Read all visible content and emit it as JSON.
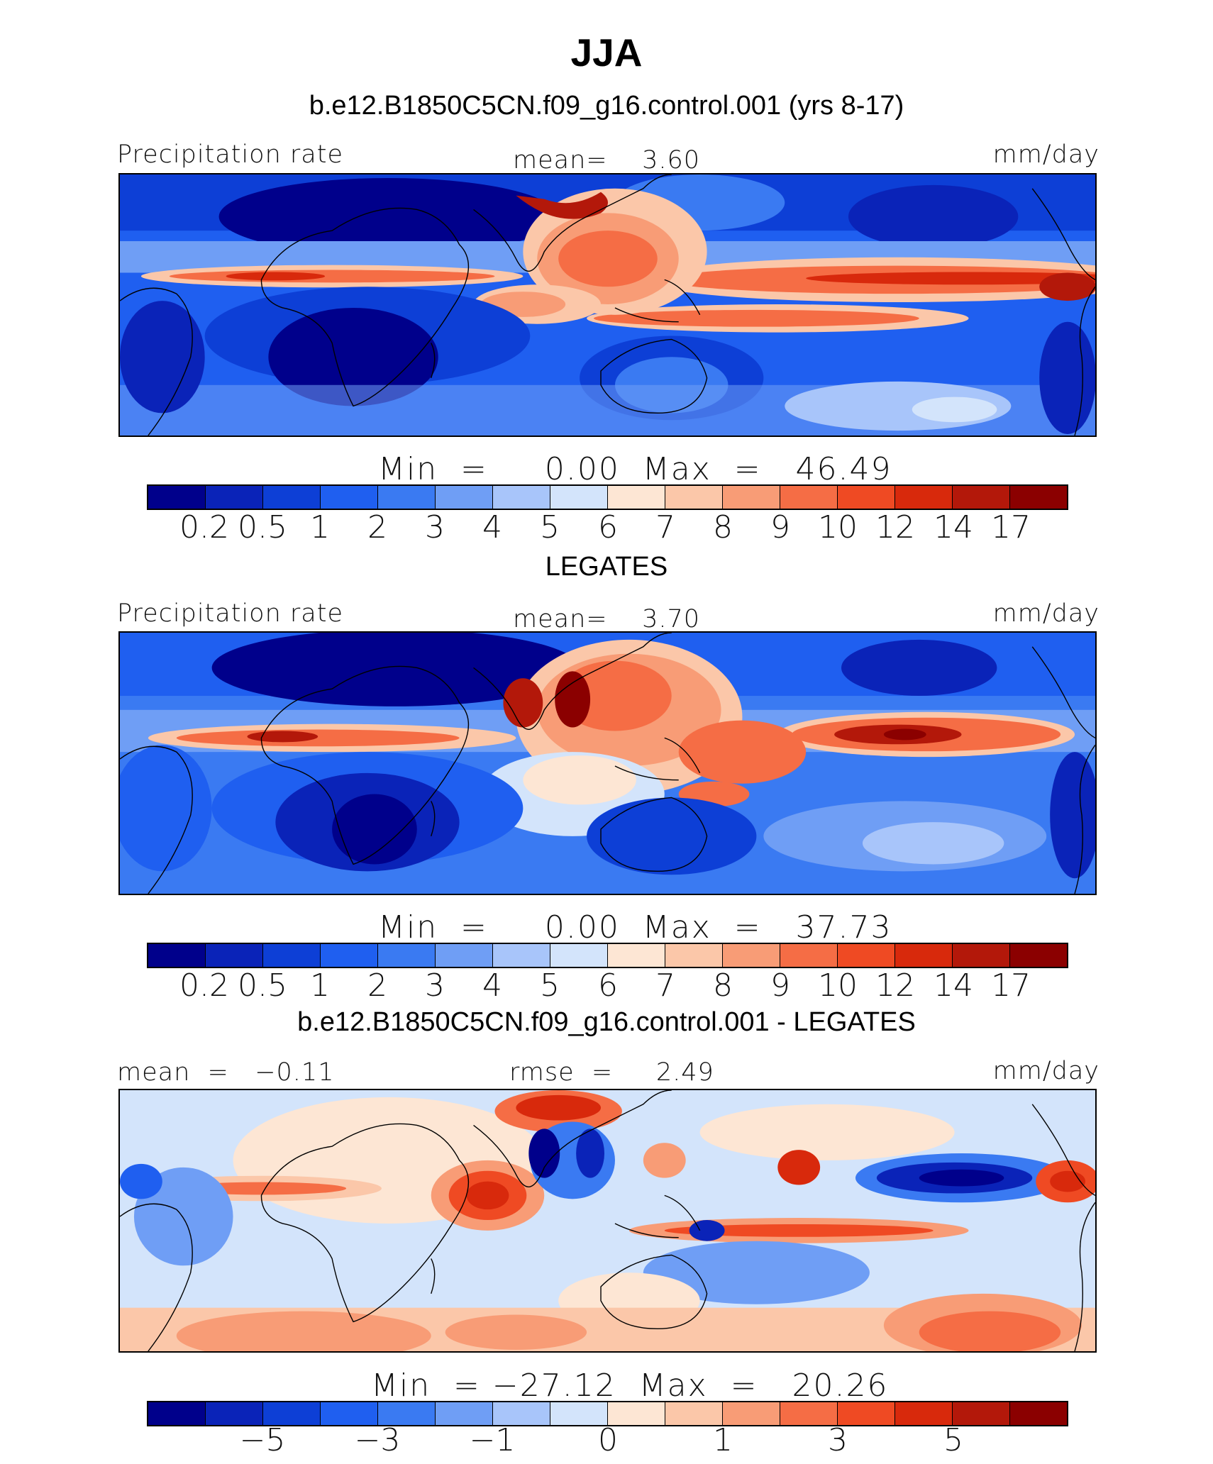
{
  "title": "JJA",
  "panels": [
    {
      "heading": "b.e12.B1850C5CN.f09_g16.control.001 (yrs 8-17)",
      "left_label": "Precipitation rate",
      "center_label": "mean=    3.60",
      "right_label": "mm/day",
      "minmax": "Min  =     0.00  Max  =   46.49",
      "ticks": [
        "0.2",
        "0.5",
        "1",
        "2",
        "3",
        "4",
        "5",
        "6",
        "7",
        "8",
        "9",
        "10",
        "12",
        "14",
        "17"
      ]
    },
    {
      "heading": "LEGATES",
      "left_label": "Precipitation rate",
      "center_label": "mean=    3.70",
      "right_label": "mm/day",
      "minmax": "Min  =     0.00  Max  =   37.73",
      "ticks": [
        "0.2",
        "0.5",
        "1",
        "2",
        "3",
        "4",
        "5",
        "6",
        "7",
        "8",
        "9",
        "10",
        "12",
        "14",
        "17"
      ]
    },
    {
      "heading": "b.e12.B1850C5CN.f09_g16.control.001 - LEGATES",
      "left_label": "mean  =   −0.11",
      "center_label": "rmse  =     2.49",
      "right_label": "mm/day",
      "minmax": "Min  = −27.12  Max  =   20.26",
      "ticks": [
        "−5",
        "−3",
        "−1",
        "0",
        "1",
        "3",
        "5"
      ]
    }
  ],
  "colorbar_colors": [
    "#00008b",
    "#0a23b8",
    "#0d3fd6",
    "#1f5ff0",
    "#3a7af2",
    "#6f9ef5",
    "#a8c5fa",
    "#d3e4fb",
    "#fde6d4",
    "#fbc7a9",
    "#f89c76",
    "#f56d45",
    "#ef4a23",
    "#d8290c",
    "#b3180a",
    "#8b0000"
  ]
}
